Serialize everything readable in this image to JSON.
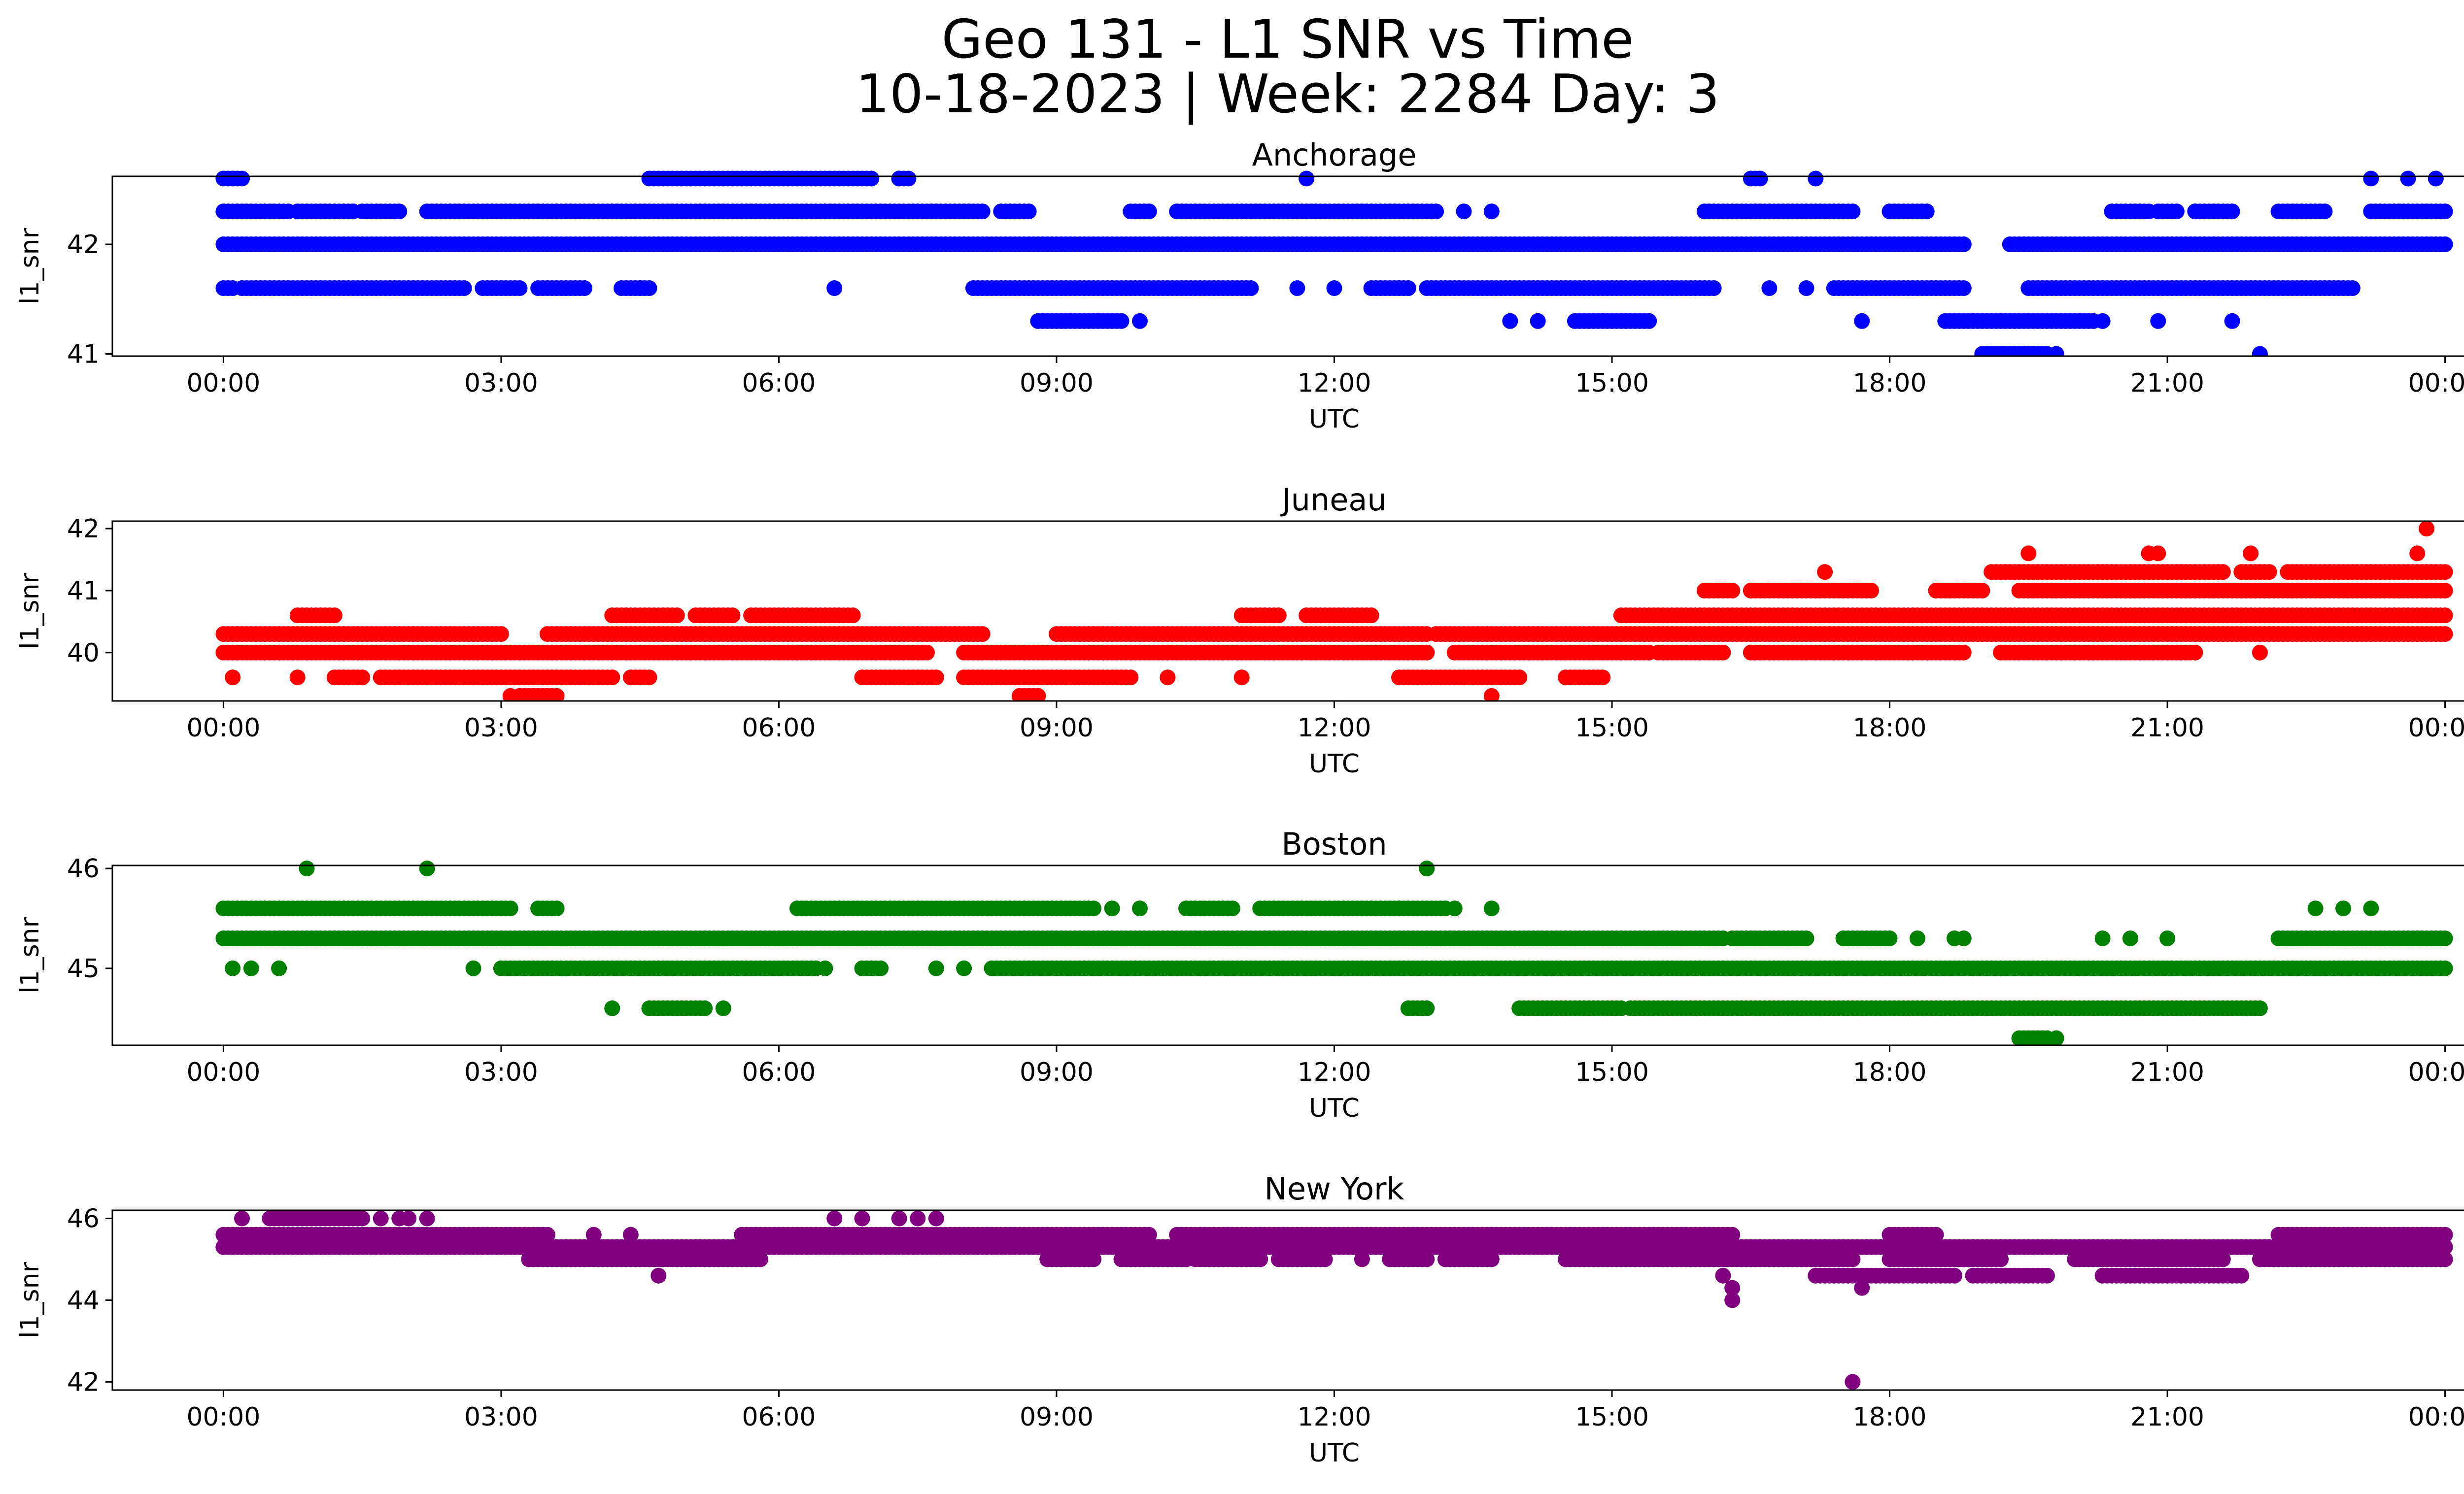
{
  "figure": {
    "title_line1": "Geo 131 - L1 SNR vs Time",
    "title_line2": "10-18-2023 | Week: 2284 Day: 3"
  },
  "chart_data": [
    {
      "type": "scatter",
      "title": "Anchorage",
      "xlabel": "UTC",
      "ylabel": "l1_snr",
      "color": "#0000ff",
      "x_ticks": [
        "00:00",
        "03:00",
        "06:00",
        "09:00",
        "12:00",
        "15:00",
        "18:00",
        "21:00",
        "00:00"
      ],
      "xlim_hours": [
        -1.2,
        25.2
      ],
      "y_ticks": [
        41,
        42
      ],
      "ylim": [
        40.98,
        42.62
      ],
      "series": [
        {
          "y": 42.0,
          "segments": [
            [
              0.0,
              18.8
            ],
            [
              19.3,
              24.0
            ]
          ]
        },
        {
          "y": 42.3,
          "segments": [
            [
              0.0,
              0.7
            ],
            [
              0.8,
              1.4
            ],
            [
              1.5,
              1.9
            ],
            [
              2.2,
              8.2
            ],
            [
              8.4,
              8.7
            ],
            [
              9.8,
              10.0
            ],
            [
              10.3,
              13.1
            ],
            [
              16.0,
              17.6
            ],
            [
              18.0,
              18.4
            ],
            [
              20.4,
              20.8
            ],
            [
              20.9,
              21.1
            ],
            [
              21.3,
              21.7
            ],
            [
              22.2,
              22.7
            ],
            [
              23.2,
              24.0
            ]
          ]
        },
        {
          "y": 41.6,
          "segments": [
            [
              0.0,
              0.1
            ],
            [
              0.2,
              2.6
            ],
            [
              2.8,
              3.2
            ],
            [
              3.4,
              3.9
            ],
            [
              4.3,
              4.6
            ],
            [
              8.1,
              11.1
            ],
            [
              12.4,
              12.8
            ],
            [
              13.0,
              16.1
            ],
            [
              17.4,
              18.8
            ],
            [
              19.5,
              23.0
            ]
          ]
        },
        {
          "y": 42.6,
          "segments": [
            [
              0.0,
              0.2
            ],
            [
              4.6,
              7.0
            ],
            [
              7.3,
              7.4
            ],
            [
              16.5,
              16.6
            ]
          ]
        },
        {
          "y": 41.3,
          "segments": [
            [
              8.8,
              9.7
            ],
            [
              14.6,
              15.4
            ],
            [
              18.6,
              20.2
            ]
          ]
        },
        {
          "y": 41.0,
          "segments": [
            [
              19.0,
              19.7
            ]
          ]
        }
      ],
      "points": [
        [
          0.1,
          42.6
        ],
        [
          4.5,
          41.6
        ],
        [
          6.6,
          41.6
        ],
        [
          7.3,
          42.6
        ],
        [
          9.9,
          41.3
        ],
        [
          11.7,
          42.6
        ],
        [
          11.6,
          41.6
        ],
        [
          12.0,
          41.6
        ],
        [
          12.7,
          41.6
        ],
        [
          13.4,
          42.3
        ],
        [
          13.7,
          42.3
        ],
        [
          13.9,
          41.3
        ],
        [
          14.2,
          41.3
        ],
        [
          16.7,
          41.6
        ],
        [
          17.1,
          41.6
        ],
        [
          17.2,
          42.6
        ],
        [
          17.7,
          41.3
        ],
        [
          20.3,
          41.3
        ],
        [
          20.9,
          41.3
        ],
        [
          21.3,
          42.3
        ],
        [
          21.7,
          41.3
        ],
        [
          22.0,
          41.0
        ],
        [
          23.2,
          42.6
        ],
        [
          23.6,
          42.6
        ],
        [
          23.9,
          42.6
        ],
        [
          19.8,
          41.0
        ]
      ]
    },
    {
      "type": "scatter",
      "title": "Juneau",
      "xlabel": "UTC",
      "ylabel": "l1_snr",
      "color": "#ff0000",
      "x_ticks": [
        "00:00",
        "03:00",
        "06:00",
        "09:00",
        "12:00",
        "15:00",
        "18:00",
        "21:00",
        "00:00"
      ],
      "xlim_hours": [
        -1.2,
        25.2
      ],
      "y_ticks": [
        40,
        41,
        42
      ],
      "ylim": [
        39.22,
        42.12
      ],
      "series": [
        {
          "y": 40.0,
          "segments": [
            [
              0.0,
              7.6
            ],
            [
              8.0,
              13.0
            ],
            [
              13.3,
              15.4
            ]
          ]
        },
        {
          "y": 40.3,
          "segments": [
            [
              0.0,
              3.0
            ],
            [
              3.5,
              8.2
            ],
            [
              9.0,
              13.0
            ],
            [
              13.1,
              24.0
            ]
          ]
        },
        {
          "y": 39.6,
          "segments": [
            [
              1.2,
              1.5
            ],
            [
              1.7,
              4.2
            ],
            [
              4.4,
              4.6
            ],
            [
              6.9,
              7.7
            ],
            [
              8.0,
              9.8
            ],
            [
              12.7,
              14.0
            ],
            [
              14.5,
              14.9
            ]
          ]
        },
        {
          "y": 40.6,
          "segments": [
            [
              0.8,
              1.2
            ],
            [
              4.2,
              4.9
            ],
            [
              5.1,
              5.5
            ],
            [
              5.7,
              6.8
            ],
            [
              11.0,
              11.4
            ],
            [
              11.7,
              12.4
            ],
            [
              15.1,
              24.0
            ]
          ]
        },
        {
          "y": 41.0,
          "segments": [
            [
              16.0,
              16.3
            ],
            [
              16.5,
              17.8
            ],
            [
              18.5,
              19.0
            ],
            [
              19.4,
              24.0
            ]
          ]
        },
        {
          "y": 41.3,
          "segments": [
            [
              19.1,
              21.6
            ],
            [
              21.8,
              22.1
            ],
            [
              22.3,
              24.0
            ]
          ]
        },
        {
          "y": 40.0,
          "segments": [
            [
              15.5,
              16.2
            ],
            [
              16.5,
              18.8
            ],
            [
              19.2,
              21.3
            ]
          ]
        },
        {
          "y": 39.3,
          "segments": [
            [
              3.2,
              3.6
            ],
            [
              8.6,
              8.8
            ]
          ]
        }
      ],
      "points": [
        [
          0.1,
          39.6
        ],
        [
          0.8,
          39.6
        ],
        [
          3.1,
          39.3
        ],
        [
          10.2,
          39.6
        ],
        [
          11.0,
          39.6
        ],
        [
          13.7,
          39.3
        ],
        [
          17.3,
          41.3
        ],
        [
          18.2,
          40.0
        ],
        [
          19.5,
          41.6
        ],
        [
          20.0,
          40.0
        ],
        [
          20.8,
          41.6
        ],
        [
          20.9,
          41.6
        ],
        [
          21.9,
          41.6
        ],
        [
          22.0,
          40.0
        ],
        [
          23.8,
          42.0
        ],
        [
          23.7,
          41.6
        ]
      ]
    },
    {
      "type": "scatter",
      "title": "Boston",
      "xlabel": "UTC",
      "ylabel": "l1_snr",
      "color": "#008000",
      "x_ticks": [
        "00:00",
        "03:00",
        "06:00",
        "09:00",
        "12:00",
        "15:00",
        "18:00",
        "21:00",
        "00:00"
      ],
      "xlim_hours": [
        -1.2,
        25.2
      ],
      "y_ticks": [
        45,
        46
      ],
      "ylim": [
        44.23,
        46.03
      ],
      "series": [
        {
          "y": 45.3,
          "segments": [
            [
              0.0,
              16.2
            ],
            [
              16.3,
              17.1
            ],
            [
              17.5,
              18.0
            ],
            [
              22.2,
              24.0
            ]
          ]
        },
        {
          "y": 45.6,
          "segments": [
            [
              0.0,
              3.1
            ],
            [
              3.4,
              3.6
            ],
            [
              6.2,
              9.4
            ],
            [
              10.4,
              10.9
            ],
            [
              11.2,
              12.7
            ],
            [
              12.7,
              13.2
            ]
          ]
        },
        {
          "y": 45.0,
          "segments": [
            [
              3.0,
              6.4
            ],
            [
              6.9,
              7.1
            ],
            [
              8.3,
              24.0
            ]
          ]
        },
        {
          "y": 44.6,
          "segments": [
            [
              4.6,
              5.2
            ],
            [
              12.8,
              13.0
            ],
            [
              14.0,
              15.1
            ],
            [
              15.2,
              22.0
            ]
          ]
        },
        {
          "y": 44.3,
          "segments": [
            [
              19.4,
              19.7
            ]
          ]
        }
      ],
      "points": [
        [
          0.1,
          45.0
        ],
        [
          0.3,
          45.0
        ],
        [
          0.6,
          45.0
        ],
        [
          0.9,
          46.0
        ],
        [
          2.2,
          46.0
        ],
        [
          2.7,
          45.0
        ],
        [
          4.2,
          44.6
        ],
        [
          5.4,
          44.6
        ],
        [
          6.5,
          45.0
        ],
        [
          7.7,
          45.0
        ],
        [
          8.0,
          45.0
        ],
        [
          9.6,
          45.6
        ],
        [
          9.9,
          45.6
        ],
        [
          13.0,
          46.0
        ],
        [
          13.3,
          45.6
        ],
        [
          13.7,
          45.6
        ],
        [
          18.3,
          45.3
        ],
        [
          18.7,
          45.3
        ],
        [
          18.8,
          45.3
        ],
        [
          19.8,
          44.3
        ],
        [
          20.3,
          45.3
        ],
        [
          20.6,
          45.3
        ],
        [
          21.0,
          45.3
        ],
        [
          22.6,
          45.6
        ],
        [
          22.9,
          45.6
        ],
        [
          23.2,
          45.6
        ]
      ]
    },
    {
      "type": "scatter",
      "title": "New York",
      "xlabel": "UTC",
      "ylabel": "l1_snr",
      "color": "#800080",
      "x_ticks": [
        "00:00",
        "03:00",
        "06:00",
        "09:00",
        "12:00",
        "15:00",
        "18:00",
        "21:00",
        "00:00"
      ],
      "xlim_hours": [
        -1.2,
        25.2
      ],
      "y_ticks": [
        42,
        44,
        46
      ],
      "ylim": [
        41.8,
        46.2
      ],
      "series": [
        {
          "y": 45.6,
          "segments": [
            [
              0.0,
              3.5
            ],
            [
              5.6,
              10.0
            ],
            [
              10.3,
              16.3
            ],
            [
              18.0,
              18.5
            ],
            [
              22.2,
              24.0
            ]
          ]
        },
        {
          "y": 45.3,
          "segments": [
            [
              0.0,
              24.0
            ]
          ]
        },
        {
          "y": 45.0,
          "segments": [
            [
              3.3,
              5.8
            ],
            [
              8.9,
              9.4
            ],
            [
              9.7,
              10.4
            ],
            [
              10.5,
              11.2
            ],
            [
              11.4,
              11.9
            ],
            [
              12.6,
              13.0
            ],
            [
              13.2,
              13.7
            ],
            [
              14.5,
              17.6
            ],
            [
              18.0,
              19.2
            ],
            [
              20.0,
              21.6
            ],
            [
              22.0,
              24.0
            ]
          ]
        },
        {
          "y": 46.0,
          "segments": [
            [
              0.5,
              1.5
            ]
          ]
        },
        {
          "y": 44.6,
          "segments": [
            [
              17.2,
              18.7
            ],
            [
              18.9,
              19.7
            ],
            [
              20.3,
              21.8
            ]
          ]
        }
      ],
      "points": [
        [
          0.1,
          45.6
        ],
        [
          0.2,
          46.0
        ],
        [
          1.7,
          46.0
        ],
        [
          1.9,
          46.0
        ],
        [
          2.0,
          46.0
        ],
        [
          2.2,
          46.0
        ],
        [
          4.0,
          45.6
        ],
        [
          4.4,
          45.6
        ],
        [
          4.7,
          44.6
        ],
        [
          6.6,
          46.0
        ],
        [
          6.9,
          46.0
        ],
        [
          7.3,
          46.0
        ],
        [
          7.5,
          46.0
        ],
        [
          7.7,
          46.0
        ],
        [
          12.3,
          45.0
        ],
        [
          16.2,
          44.6
        ],
        [
          16.3,
          44.3
        ],
        [
          16.3,
          44.0
        ],
        [
          17.3,
          45.3
        ],
        [
          17.6,
          42.0
        ],
        [
          17.7,
          44.3
        ],
        [
          18.5,
          45.6
        ]
      ]
    }
  ]
}
